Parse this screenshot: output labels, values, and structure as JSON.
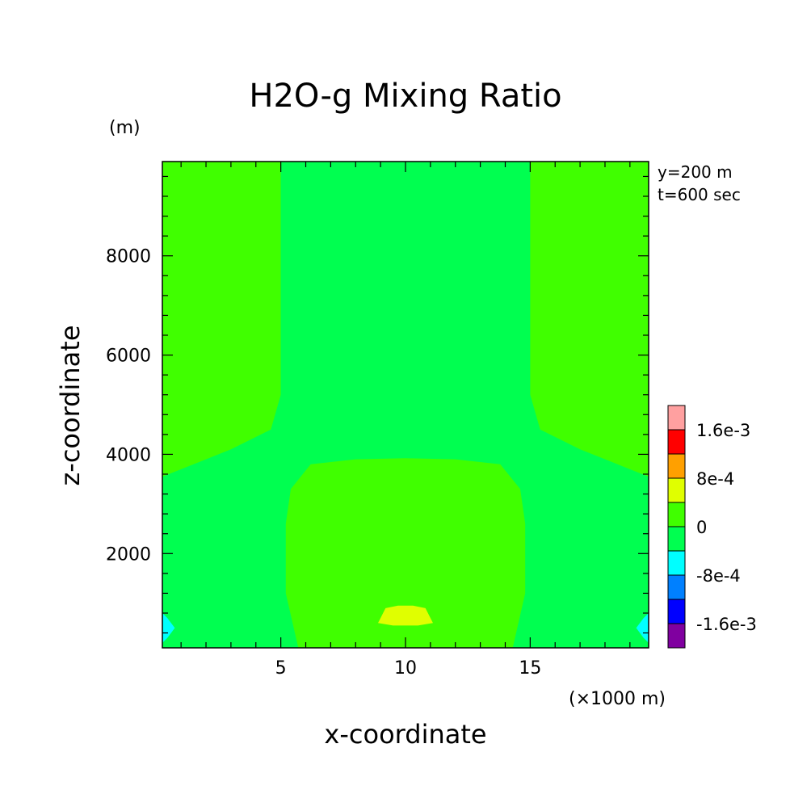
{
  "chart_data": {
    "type": "heatmap",
    "title": "H2O-g Mixing Ratio",
    "xlabel": "x-coordinate",
    "ylabel": "z-coordinate",
    "x_unit": "(×1000 m)",
    "y_unit": "(m)",
    "annotations": [
      "y=200 m",
      "t=600 sec"
    ],
    "xlim": [
      0.25,
      19.75
    ],
    "ylim": [
      100,
      9900
    ],
    "xticks": [
      5,
      10,
      15
    ],
    "yticks": [
      2000,
      4000,
      6000,
      8000
    ],
    "grid": false,
    "legend_position": "right",
    "colorbar": {
      "levels": [
        -0.002,
        -0.0016,
        -0.0012,
        -0.0008,
        -0.0004,
        0,
        0.0004,
        0.0008,
        0.0012,
        0.0016,
        0.002
      ],
      "colors": [
        "#8000a0",
        "#0000ff",
        "#0080ff",
        "#00ffff",
        "#00ff50",
        "#40ff00",
        "#e0ff00",
        "#ffa000",
        "#ff0000",
        "#ffa0a0"
      ],
      "tick_labels": [
        {
          "value": 0.0016,
          "label": "1.6e-3"
        },
        {
          "value": 0.0008,
          "label": "8e-4"
        },
        {
          "value": 0,
          "label": "0"
        },
        {
          "value": -0.0008,
          "label": "-8e-4"
        },
        {
          "value": -0.0016,
          "label": "-1.6e-3"
        }
      ]
    },
    "background_value_range": [
      -0.0004,
      0
    ],
    "regions": [
      {
        "name": "upper-left-positive",
        "range": [
          0,
          0.0004
        ],
        "points": [
          [
            0.25,
            9900
          ],
          [
            5.0,
            9900
          ],
          [
            5.0,
            5200
          ],
          [
            4.6,
            4500
          ],
          [
            3.0,
            4100
          ],
          [
            1.5,
            3800
          ],
          [
            0.25,
            3550
          ]
        ]
      },
      {
        "name": "upper-right-positive",
        "range": [
          0,
          0.0004
        ],
        "points": [
          [
            15.0,
            9900
          ],
          [
            19.75,
            9900
          ],
          [
            19.75,
            3550
          ],
          [
            18.5,
            3800
          ],
          [
            17.0,
            4100
          ],
          [
            15.4,
            4500
          ],
          [
            15.0,
            5200
          ]
        ]
      },
      {
        "name": "lower-center-positive",
        "range": [
          0,
          0.0004
        ],
        "points": [
          [
            5.7,
            100
          ],
          [
            5.2,
            1200
          ],
          [
            5.2,
            2600
          ],
          [
            5.4,
            3300
          ],
          [
            6.2,
            3800
          ],
          [
            8.0,
            3900
          ],
          [
            10.0,
            3920
          ],
          [
            12.0,
            3900
          ],
          [
            13.8,
            3800
          ],
          [
            14.6,
            3300
          ],
          [
            14.8,
            2600
          ],
          [
            14.8,
            1200
          ],
          [
            14.3,
            100
          ]
        ]
      },
      {
        "name": "center-maximum",
        "range": [
          0.0004,
          0.0008
        ],
        "points": [
          [
            8.9,
            600
          ],
          [
            9.2,
            900
          ],
          [
            9.7,
            950
          ],
          [
            10.3,
            950
          ],
          [
            10.8,
            900
          ],
          [
            11.1,
            600
          ],
          [
            10.5,
            550
          ],
          [
            9.5,
            550
          ]
        ]
      },
      {
        "name": "left-edge-minimum",
        "range": [
          -0.0008,
          -0.0004
        ],
        "points": [
          [
            0.25,
            800
          ],
          [
            0.45,
            700
          ],
          [
            0.75,
            500
          ],
          [
            0.45,
            300
          ],
          [
            0.25,
            200
          ]
        ]
      },
      {
        "name": "right-edge-minimum",
        "range": [
          -0.0008,
          -0.0004
        ],
        "points": [
          [
            19.75,
            800
          ],
          [
            19.55,
            700
          ],
          [
            19.25,
            500
          ],
          [
            19.55,
            300
          ],
          [
            19.75,
            200
          ]
        ]
      }
    ]
  }
}
